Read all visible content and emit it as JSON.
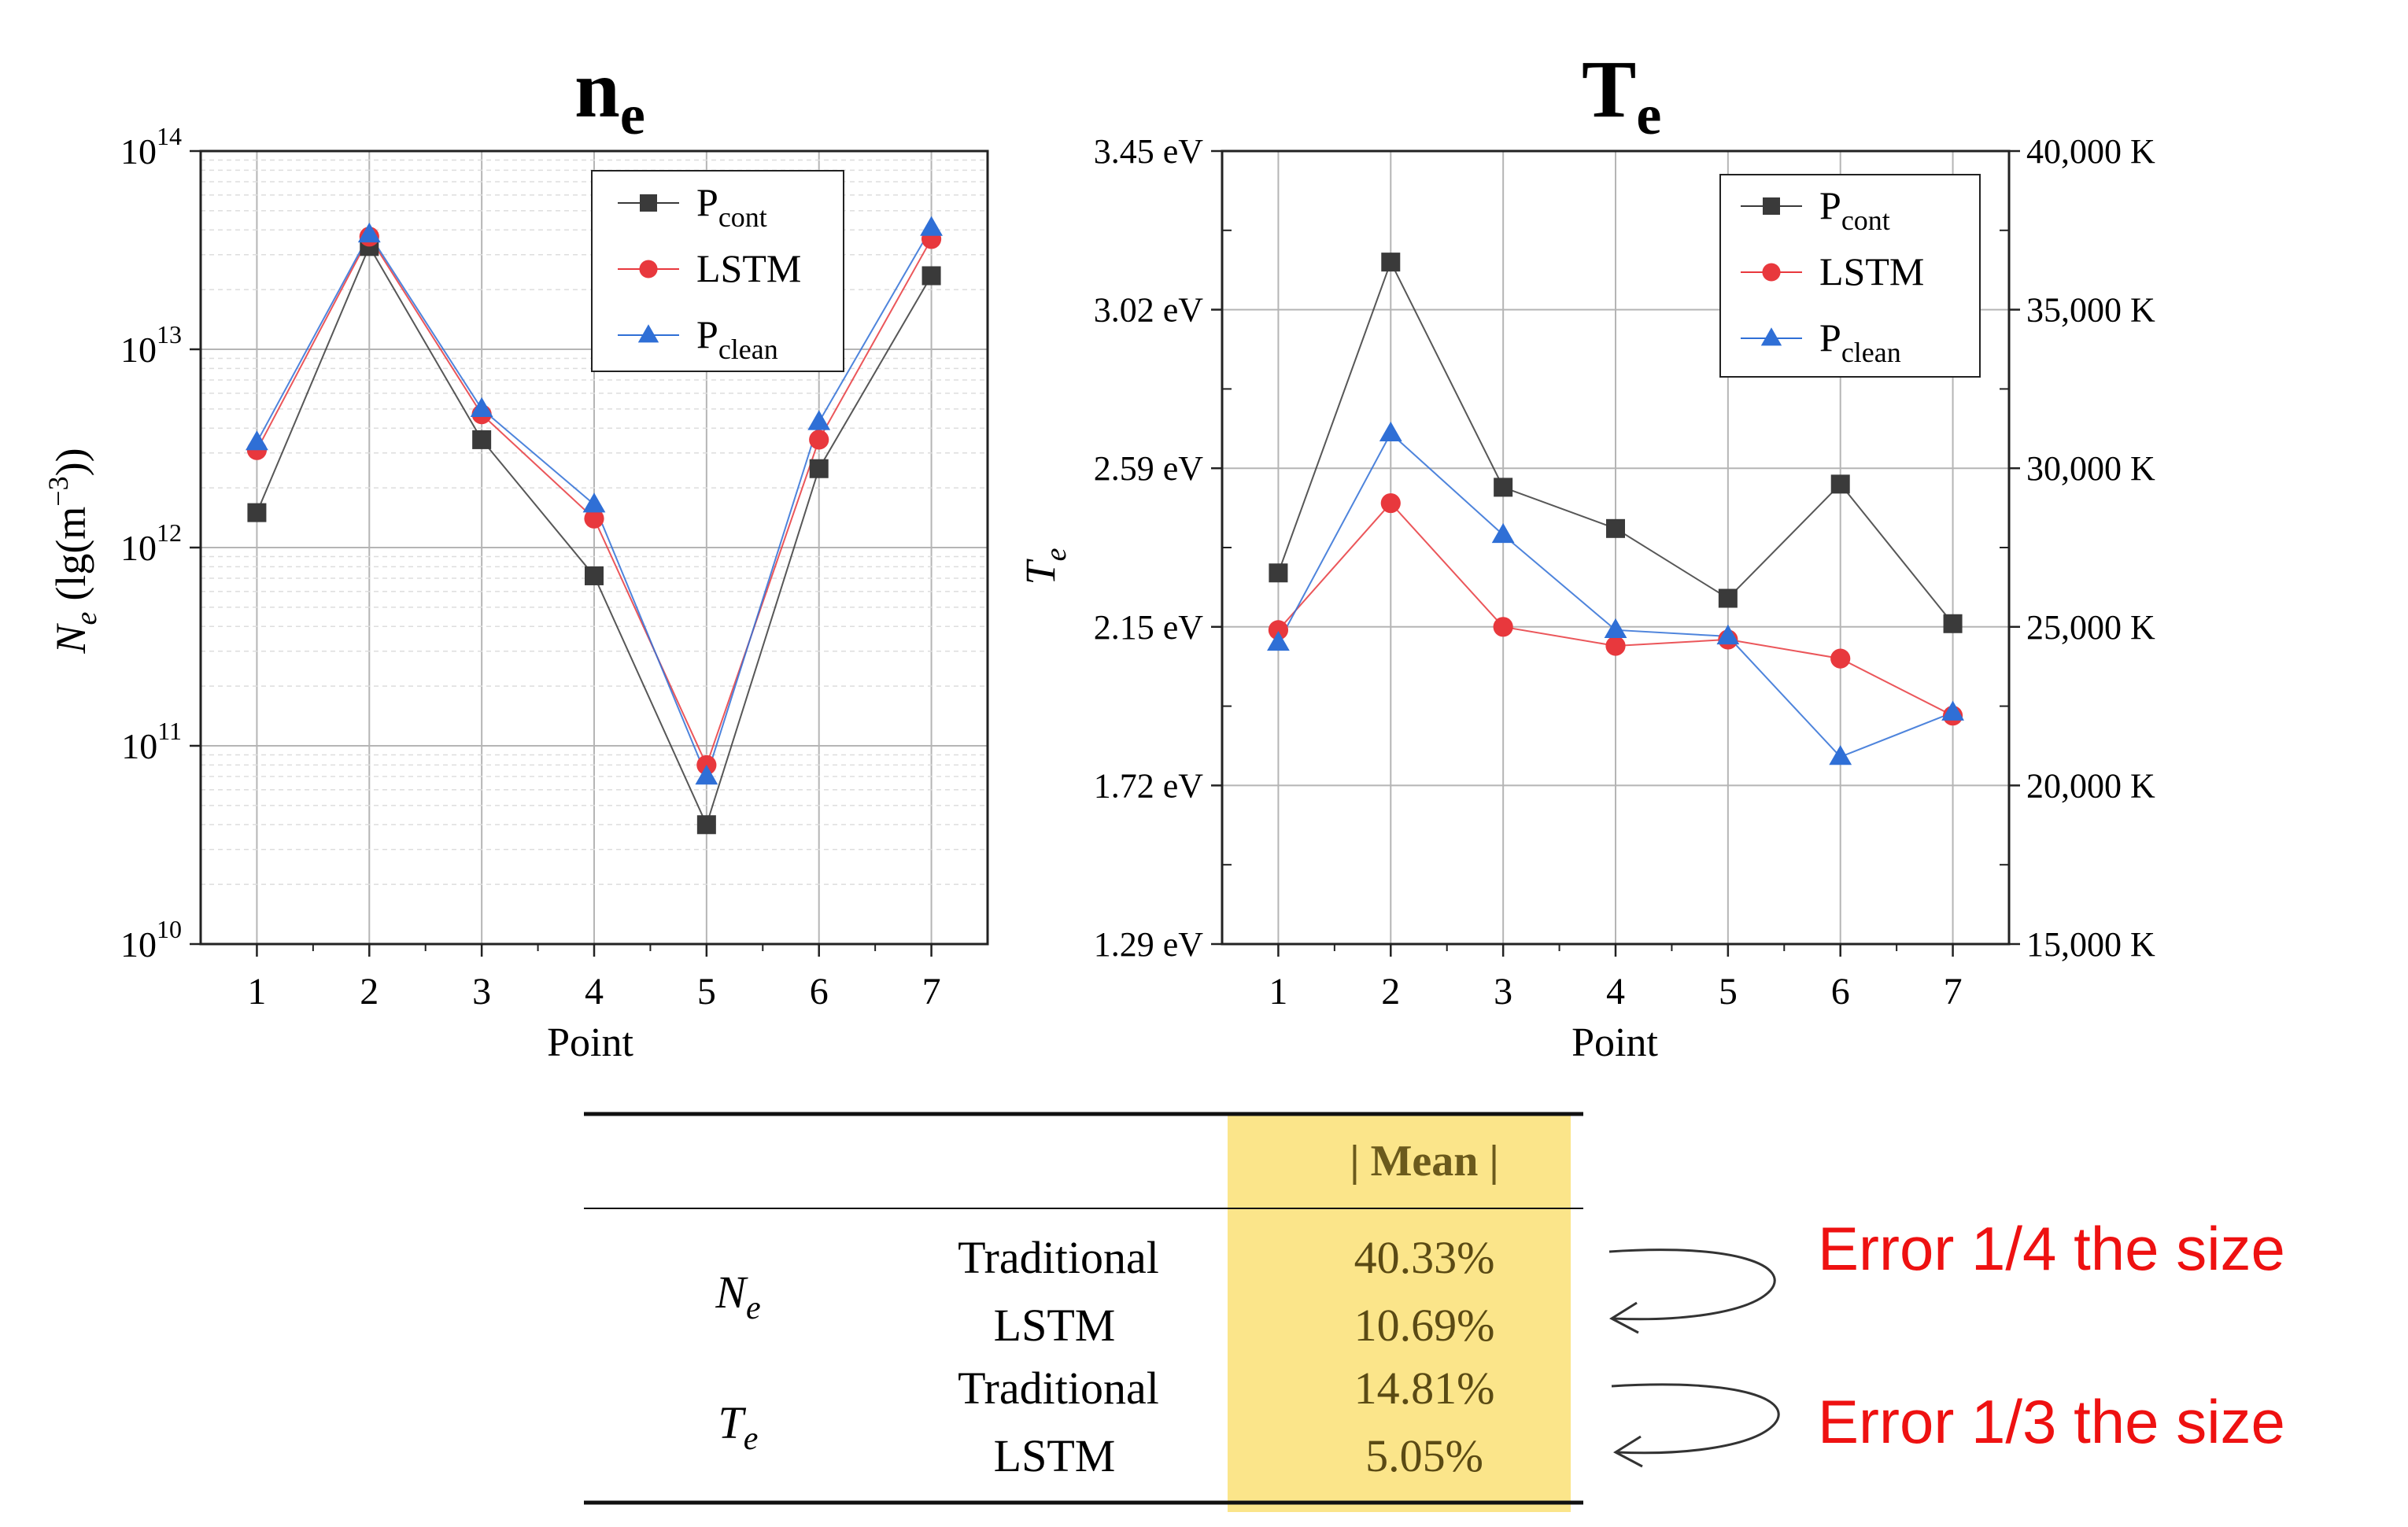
{
  "chart_data": [
    {
      "type": "line",
      "title": "n",
      "title_sub": "e",
      "xlabel": "Point",
      "ylabel": "N",
      "ylabel_sub": "e",
      "ylabel_unit": "(lg(m",
      "ylabel_unit_sup": "−3",
      "ylabel_unit_end": "))",
      "yscale": "log",
      "ylim": [
        10000000000.0,
        100000000000000.0
      ],
      "xlim": [
        0.5,
        7.5
      ],
      "x": [
        1,
        2,
        3,
        4,
        5,
        6,
        7
      ],
      "y_ticks": [
        {
          "value": 10000000000.0,
          "base": "10",
          "exp": "10"
        },
        {
          "value": 100000000000.0,
          "base": "10",
          "exp": "11"
        },
        {
          "value": 1000000000000.0,
          "base": "10",
          "exp": "12"
        },
        {
          "value": 10000000000000.0,
          "base": "10",
          "exp": "13"
        },
        {
          "value": 100000000000000.0,
          "base": "10",
          "exp": "14"
        }
      ],
      "x_ticks": [
        "1",
        "2",
        "3",
        "4",
        "5",
        "6",
        "7"
      ],
      "grid": true,
      "legend": "top-right",
      "series": [
        {
          "name": "P",
          "name_sub": "cont",
          "color": "#3a3a3a",
          "marker": "square",
          "values": [
            1500000000000.0,
            33000000000000.0,
            3500000000000.0,
            720000000000.0,
            40000000000.0,
            2500000000000.0,
            23500000000000.0
          ]
        },
        {
          "name": "LSTM",
          "name_sub": "",
          "color": "#e8383d",
          "marker": "circle",
          "values": [
            3100000000000.0,
            37000000000000.0,
            4700000000000.0,
            1400000000000.0,
            80000000000.0,
            3500000000000.0,
            36000000000000.0
          ]
        },
        {
          "name": "P",
          "name_sub": "clean",
          "color": "#2f6fd6",
          "marker": "triangle",
          "values": [
            3400000000000.0,
            38000000000000.0,
            5000000000000.0,
            1650000000000.0,
            70000000000.0,
            4300000000000.0,
            41000000000000.0
          ]
        }
      ]
    },
    {
      "type": "line",
      "title": "T",
      "title_sub": "e",
      "xlabel": "Point",
      "ylabel": "T",
      "ylabel_sub": "e",
      "ylim": [
        15000,
        40000
      ],
      "xlim": [
        0.5,
        7.5
      ],
      "x": [
        1,
        2,
        3,
        4,
        5,
        6,
        7
      ],
      "y_ticks_left": [
        "1.29 eV",
        "1.72 eV",
        "2.15 eV",
        "2.59 eV",
        "3.02 eV",
        "3.45 eV"
      ],
      "y_ticks_right": [
        "15,000 K",
        "20,000 K",
        "25,000 K",
        "30,000 K",
        "35,000 K",
        "40,000 K"
      ],
      "y_tick_values": [
        15000,
        20000,
        25000,
        30000,
        35000,
        40000
      ],
      "x_ticks": [
        "1",
        "2",
        "3",
        "4",
        "5",
        "6",
        "7"
      ],
      "grid": true,
      "legend": "top-right",
      "series": [
        {
          "name": "P",
          "name_sub": "cont",
          "color": "#3a3a3a",
          "marker": "square",
          "values": [
            26700,
            36500,
            29400,
            28100,
            25900,
            29500,
            25100
          ]
        },
        {
          "name": "LSTM",
          "name_sub": "",
          "color": "#e8383d",
          "marker": "circle",
          "values": [
            24900,
            28900,
            25000,
            24400,
            24600,
            24000,
            22200
          ]
        },
        {
          "name": "P",
          "name_sub": "clean",
          "color": "#2f6fd6",
          "marker": "triangle",
          "values": [
            24500,
            31100,
            27900,
            24900,
            24700,
            20900,
            22300
          ]
        }
      ]
    }
  ],
  "table": {
    "header": "| Mean |",
    "highlight_color": "#fbe58a",
    "groups": [
      {
        "label": "N",
        "label_sub": "e",
        "rows": [
          {
            "method": "Traditional",
            "value": "40.33%"
          },
          {
            "method": "LSTM",
            "value": "10.69%"
          }
        ]
      },
      {
        "label": "T",
        "label_sub": "e",
        "rows": [
          {
            "method": "Traditional",
            "value": "14.81%"
          },
          {
            "method": "LSTM",
            "value": "5.05%"
          }
        ]
      }
    ]
  },
  "annotations": [
    {
      "text": "Error 1/4 the size",
      "color": "#ee1111"
    },
    {
      "text": "Error 1/3 the size",
      "color": "#ee1111"
    }
  ]
}
